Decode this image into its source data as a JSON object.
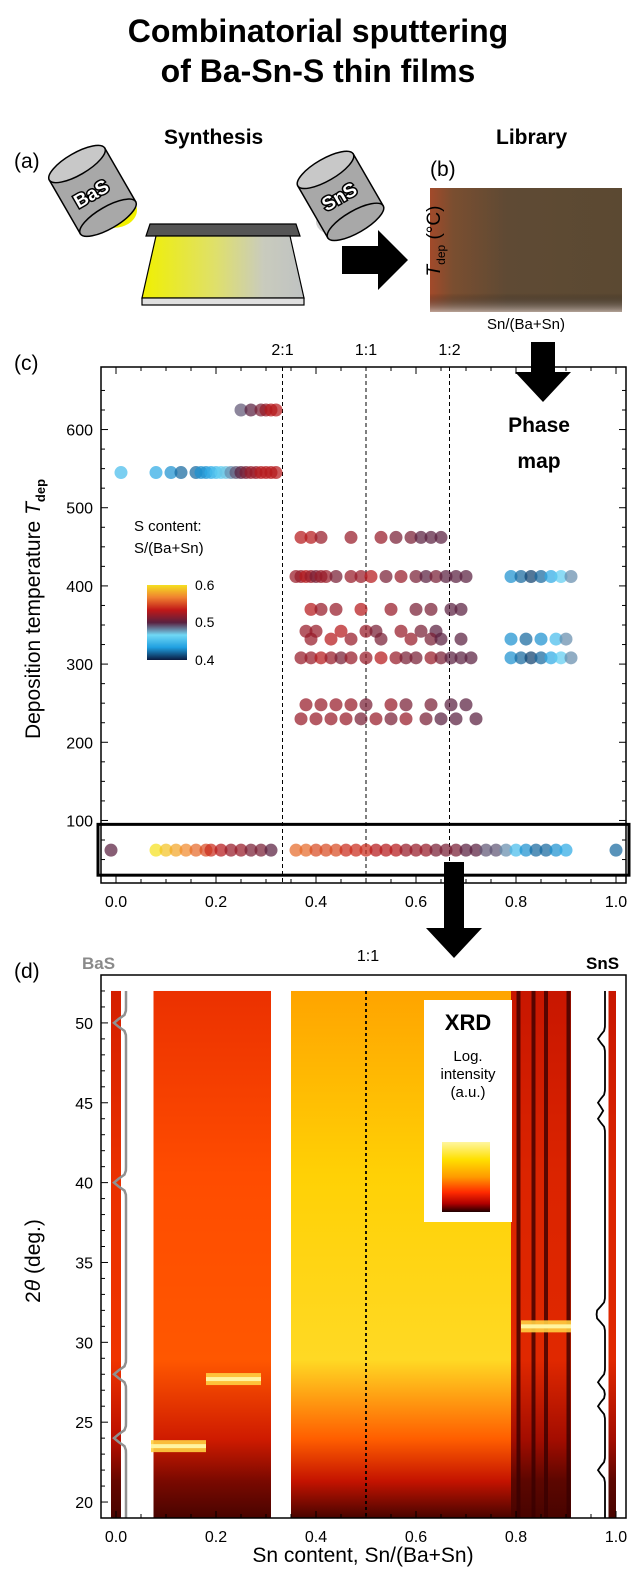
{
  "header": {
    "title_line1": "Combinatorial sputtering",
    "title_line2": "of Ba-Sn-S thin films"
  },
  "panel_a": {
    "label": "(a)",
    "heading": "Synthesis",
    "target_left": "BaS",
    "target_right": "SnS"
  },
  "panel_b": {
    "label": "(b)",
    "heading": "Library",
    "y_label_main": "T",
    "y_label_sub": "dep",
    "y_label_unit": " (°C)",
    "x_label": "Sn/(Ba+Sn)"
  },
  "panel_c": {
    "label": "(c)",
    "phase_map_line1": "Phase",
    "phase_map_line2": "map",
    "ylabel_main": "Deposition temperature ",
    "ylabel_T": "T",
    "ylabel_sub": "dep",
    "colorbar_title_line1": "S content:",
    "colorbar_title_line2": "S/(Ba+Sn)",
    "colorbar_ticks": [
      "0.6",
      "0.5",
      "0.4"
    ]
  },
  "panel_d": {
    "label": "(d)",
    "bas_label": "BaS",
    "sns_label": "SnS",
    "ratio_label": "1:1",
    "xrd_title": "XRD",
    "legend_line1": "Log.",
    "legend_line2": "intensity",
    "legend_line3": "(a.u.)",
    "ylabel_theta": "θ",
    "ylabel_prefix": "2",
    "ylabel_suffix": " (deg.)",
    "xlabel": "Sn content, Sn/(Ba+Sn)"
  },
  "chart_data": [
    {
      "type": "scatter",
      "title": "",
      "xlabel": "",
      "ylabel": "Deposition temperature Tdep (°C)",
      "xlim": [
        -0.03,
        1.02
      ],
      "ylim": [
        20,
        680
      ],
      "x_ticks": [
        "0.0",
        "0.2",
        "0.4",
        "0.6",
        "0.8",
        "1.0"
      ],
      "x_tick_values": [
        0,
        0.2,
        0.4,
        0.6,
        0.8,
        1.0
      ],
      "y_ticks": [
        "100",
        "200",
        "300",
        "400",
        "500",
        "600"
      ],
      "y_tick_values": [
        100,
        200,
        300,
        400,
        500,
        600
      ],
      "ratio_lines": [
        {
          "label": "2:1",
          "x": 0.333
        },
        {
          "label": "1:1",
          "x": 0.5
        },
        {
          "label": "1:2",
          "x": 0.667
        }
      ],
      "highlight_range_y": [
        30,
        95
      ],
      "color_scale": {
        "name": "S/(Ba+Sn)",
        "min": 0.4,
        "max": 0.6,
        "colors": [
          "#0a1a40",
          "#1f9fe0",
          "#70d8f5",
          "#5a2040",
          "#c01818",
          "#f08030",
          "#f5e020"
        ]
      },
      "series": [
        {
          "y": 625,
          "x": [
            0.25,
            0.27,
            0.29,
            0.3,
            0.31,
            0.32
          ],
          "s": [
            0.49,
            0.5,
            0.51,
            0.52,
            0.53,
            0.53
          ]
        },
        {
          "y": 545,
          "x": [
            0.01,
            0.08,
            0.11,
            0.13,
            0.16,
            0.17,
            0.18,
            0.19,
            0.2,
            0.21,
            0.22,
            0.23,
            0.24,
            0.25,
            0.26,
            0.27,
            0.28,
            0.29,
            0.3,
            0.31,
            0.32
          ],
          "s": [
            0.45,
            0.44,
            0.43,
            0.42,
            0.42,
            0.43,
            0.43,
            0.44,
            0.45,
            0.46,
            0.47,
            0.48,
            0.49,
            0.5,
            0.51,
            0.52,
            0.52,
            0.53,
            0.53,
            0.53,
            0.53
          ]
        },
        {
          "y": 462,
          "x": [
            0.37,
            0.39,
            0.41,
            0.47,
            0.53,
            0.56,
            0.59,
            0.61,
            0.63,
            0.65
          ],
          "s": [
            0.53,
            0.53,
            0.52,
            0.52,
            0.52,
            0.51,
            0.51,
            0.5,
            0.5,
            0.5
          ]
        },
        {
          "y": 412,
          "x": [
            0.36,
            0.37,
            0.38,
            0.39,
            0.4,
            0.41,
            0.42,
            0.44,
            0.47,
            0.49,
            0.51,
            0.54,
            0.57,
            0.6,
            0.62,
            0.64,
            0.66,
            0.68,
            0.7,
            0.79,
            0.81,
            0.83,
            0.85,
            0.87,
            0.89,
            0.91
          ],
          "s": [
            0.52,
            0.52,
            0.53,
            0.52,
            0.51,
            0.52,
            0.52,
            0.51,
            0.52,
            0.52,
            0.53,
            0.51,
            0.52,
            0.51,
            0.5,
            0.51,
            0.5,
            0.5,
            0.5,
            0.43,
            0.42,
            0.41,
            0.42,
            0.44,
            0.46,
            0.48
          ]
        },
        {
          "y": 370,
          "x": [
            0.39,
            0.41,
            0.44,
            0.49,
            0.55,
            0.6,
            0.63,
            0.67,
            0.69
          ],
          "s": [
            0.53,
            0.52,
            0.52,
            0.53,
            0.52,
            0.51,
            0.51,
            0.5,
            0.5
          ]
        },
        {
          "y": 342,
          "x": [
            0.38,
            0.4,
            0.45,
            0.5,
            0.52,
            0.57,
            0.61,
            0.64
          ],
          "s": [
            0.52,
            0.52,
            0.53,
            0.52,
            0.51,
            0.52,
            0.51,
            0.5
          ]
        },
        {
          "y": 332,
          "x": [
            0.39,
            0.43,
            0.47,
            0.53,
            0.59,
            0.63,
            0.65,
            0.69,
            0.79,
            0.82,
            0.85,
            0.88,
            0.9
          ],
          "s": [
            0.52,
            0.53,
            0.52,
            0.51,
            0.52,
            0.51,
            0.5,
            0.5,
            0.43,
            0.42,
            0.43,
            0.45,
            0.48
          ]
        },
        {
          "y": 308,
          "x": [
            0.37,
            0.39,
            0.41,
            0.43,
            0.45,
            0.47,
            0.5,
            0.53,
            0.56,
            0.58,
            0.6,
            0.63,
            0.65,
            0.67,
            0.69,
            0.71,
            0.79,
            0.81,
            0.83,
            0.85,
            0.87,
            0.89,
            0.91
          ],
          "s": [
            0.52,
            0.52,
            0.53,
            0.52,
            0.51,
            0.52,
            0.52,
            0.53,
            0.52,
            0.51,
            0.51,
            0.52,
            0.51,
            0.5,
            0.5,
            0.5,
            0.43,
            0.42,
            0.41,
            0.42,
            0.44,
            0.46,
            0.48
          ]
        },
        {
          "y": 248,
          "x": [
            0.38,
            0.41,
            0.44,
            0.47,
            0.5,
            0.55,
            0.58,
            0.63,
            0.67,
            0.7
          ],
          "s": [
            0.52,
            0.52,
            0.52,
            0.52,
            0.51,
            0.52,
            0.51,
            0.51,
            0.5,
            0.5
          ]
        },
        {
          "y": 230,
          "x": [
            0.37,
            0.4,
            0.43,
            0.46,
            0.49,
            0.52,
            0.55,
            0.58,
            0.62,
            0.65,
            0.68,
            0.72
          ],
          "s": [
            0.52,
            0.52,
            0.52,
            0.52,
            0.51,
            0.52,
            0.51,
            0.52,
            0.51,
            0.5,
            0.5,
            0.5
          ]
        },
        {
          "y": 62,
          "x": [
            -0.01,
            0.08,
            0.1,
            0.12,
            0.14,
            0.16,
            0.18,
            0.19,
            0.21,
            0.23,
            0.25,
            0.27,
            0.29,
            0.31,
            0.36,
            0.38,
            0.4,
            0.42,
            0.44,
            0.46,
            0.48,
            0.5,
            0.52,
            0.54,
            0.56,
            0.58,
            0.6,
            0.62,
            0.64,
            0.66,
            0.68,
            0.7,
            0.72,
            0.74,
            0.76,
            0.78,
            0.8,
            0.82,
            0.84,
            0.86,
            0.88,
            0.9,
            1.0
          ],
          "s": [
            0.5,
            0.6,
            0.59,
            0.58,
            0.57,
            0.56,
            0.55,
            0.54,
            0.53,
            0.52,
            0.52,
            0.51,
            0.51,
            0.5,
            0.56,
            0.56,
            0.55,
            0.55,
            0.55,
            0.54,
            0.54,
            0.54,
            0.53,
            0.53,
            0.53,
            0.52,
            0.52,
            0.52,
            0.51,
            0.51,
            0.51,
            0.5,
            0.5,
            0.49,
            0.49,
            0.48,
            0.45,
            0.43,
            0.42,
            0.42,
            0.43,
            0.44,
            0.42
          ]
        }
      ]
    },
    {
      "type": "heatmap",
      "title": "",
      "xlabel": "Sn content, Sn/(Ba+Sn)",
      "ylabel": "2θ (deg.)",
      "xlim": [
        -0.03,
        1.02
      ],
      "ylim": [
        19,
        53
      ],
      "x_ticks": [
        "0.0",
        "0.2",
        "0.4",
        "0.6",
        "0.8",
        "1.0"
      ],
      "x_tick_values": [
        0,
        0.2,
        0.4,
        0.6,
        0.8,
        1.0
      ],
      "y_ticks": [
        "20",
        "25",
        "30",
        "35",
        "40",
        "45",
        "50"
      ],
      "y_tick_values": [
        20,
        25,
        30,
        35,
        40,
        45,
        50
      ],
      "data_y_range": [
        19,
        52
      ],
      "color_scale": {
        "name": "Log. intensity (a.u.)",
        "colors": [
          "#200000",
          "#c01000",
          "#ff4000",
          "#ff9a00",
          "#ffd000",
          "#fff590"
        ]
      },
      "bas_reference_peaks_deg": [
        24,
        28,
        40,
        50
      ],
      "sns_reference_peaks_deg": [
        22,
        26,
        27.5,
        31.5,
        32,
        44,
        45,
        49
      ],
      "peak_bands": [
        {
          "x_range": [
            0.07,
            0.18
          ],
          "two_theta": 23.5
        },
        {
          "x_range": [
            0.18,
            0.29
          ],
          "two_theta": 27.7
        },
        {
          "x_range": [
            0.81,
            0.91
          ],
          "two_theta": 31
        }
      ],
      "column_blocks": [
        {
          "x_range": [
            -0.01,
            0.01
          ],
          "level": 0.35
        },
        {
          "x_range": [
            0.075,
            0.31
          ],
          "level": 0.45
        },
        {
          "x_range": [
            0.35,
            0.79
          ],
          "level": 0.85
        },
        {
          "x_range": [
            0.79,
            0.91
          ],
          "level": 0.3
        },
        {
          "x_range": [
            0.985,
            1.0
          ],
          "level": 0.3
        }
      ]
    }
  ]
}
